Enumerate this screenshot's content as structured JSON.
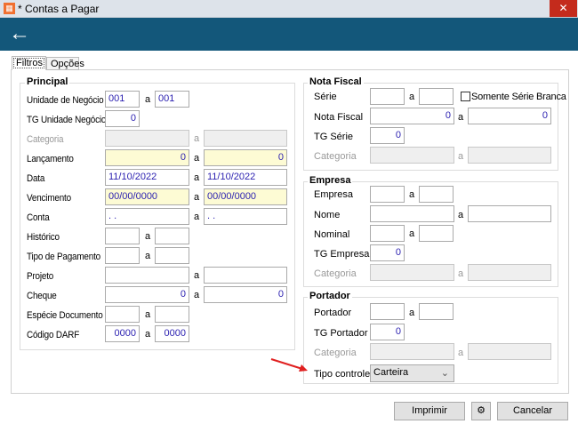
{
  "window": {
    "title": "* Contas a Pagar",
    "close": "✕",
    "back_icon": "←"
  },
  "tabs": [
    {
      "label": "Filtros",
      "active": true
    },
    {
      "label": "Opções",
      "active": false
    }
  ],
  "sep": "a",
  "principal": {
    "title": "Principal",
    "rows": [
      {
        "label": "Unidade de Negócio",
        "from": "001",
        "to": "001"
      },
      {
        "label": "TG Unidade Negócio",
        "value": "0"
      },
      {
        "label": "Categoria",
        "from": "",
        "to": ""
      },
      {
        "label": "Lançamento",
        "from": "0",
        "to": "0"
      },
      {
        "label": "Data",
        "from": "11/10/2022",
        "to": "11/10/2022"
      },
      {
        "label": "Vencimento",
        "from": "00/00/0000",
        "to": "00/00/0000"
      },
      {
        "label": "Conta",
        "from": ". .",
        "to": ". ."
      },
      {
        "label": "Histórico",
        "from": "",
        "to": ""
      },
      {
        "label": "Tipo de Pagamento",
        "from": "",
        "to": ""
      },
      {
        "label": "Projeto",
        "from": "",
        "to": ""
      },
      {
        "label": "Cheque",
        "from": "0",
        "to": "0"
      },
      {
        "label": "Espécie Documento",
        "from": "",
        "to": ""
      },
      {
        "label": "Código DARF",
        "from": "0000",
        "to": "0000"
      }
    ]
  },
  "nota_fiscal": {
    "title": "Nota Fiscal",
    "serie": "Série",
    "somente": "Somente Série Branca",
    "nota": "Nota Fiscal",
    "nota_from": "0",
    "nota_to": "0",
    "tg": "TG Série",
    "tg_value": "0",
    "categoria": "Categoria"
  },
  "empresa": {
    "title": "Empresa",
    "empresa": "Empresa",
    "nome": "Nome",
    "nominal": "Nominal",
    "tg": "TG Empresa",
    "tg_value": "0",
    "categoria": "Categoria"
  },
  "portador": {
    "title": "Portador",
    "portador": "Portador",
    "tg": "TG Portador",
    "tg_value": "0",
    "categoria": "Categoria",
    "tipo": "Tipo controle",
    "tipo_value": "Carteira"
  },
  "buttons": {
    "print": "Imprimir",
    "cancel": "Cancelar"
  },
  "annotation_color": "#e02020"
}
